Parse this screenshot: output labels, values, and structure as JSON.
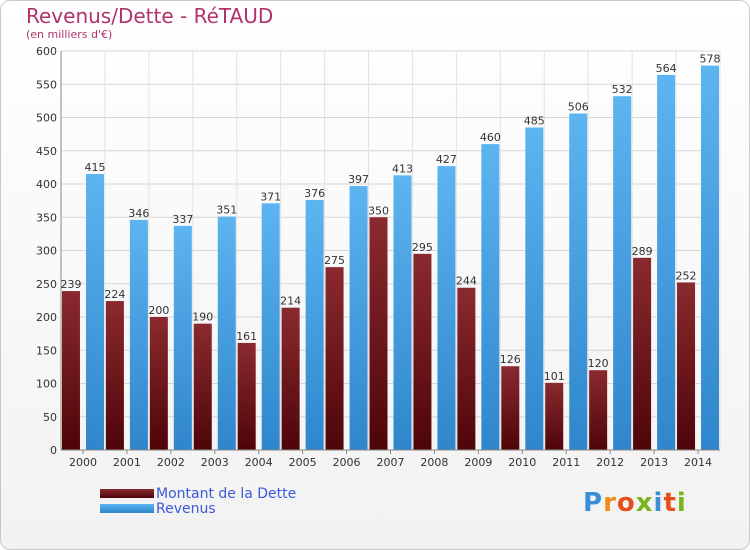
{
  "page": {
    "title": "Revenus/Dette - RéTAUD",
    "subtitle": "(en milliers d'€)"
  },
  "chart_data": {
    "type": "bar",
    "title": "Revenus/Dette - RéTAUD",
    "subtitle": "(en milliers d'€)",
    "categories": [
      "2000",
      "2001",
      "2002",
      "2003",
      "2004",
      "2005",
      "2006",
      "2007",
      "2008",
      "2009",
      "2010",
      "2011",
      "2012",
      "2013",
      "2014"
    ],
    "series": [
      {
        "name": "Montant de la Dette",
        "color": "#7a1e24",
        "values": [
          239,
          224,
          200,
          190,
          161,
          214,
          275,
          350,
          295,
          244,
          126,
          101,
          120,
          289,
          252
        ]
      },
      {
        "name": "Revenus",
        "color": "#4ea7e8",
        "values": [
          415,
          346,
          337,
          351,
          371,
          376,
          397,
          413,
          427,
          460,
          485,
          506,
          532,
          564,
          578
        ]
      }
    ],
    "ylim": [
      0,
      600
    ],
    "yticks": [
      0,
      50,
      100,
      150,
      200,
      250,
      300,
      350,
      400,
      450,
      500,
      550,
      600
    ],
    "grid": true,
    "legend_position": "bottom-left"
  },
  "legend": {
    "items": [
      {
        "label": "Montant de la Dette",
        "color": "#7a1e24"
      },
      {
        "label": "Revenus",
        "color": "#4ea7e8"
      }
    ]
  },
  "logo": {
    "text": "Proxiti"
  }
}
